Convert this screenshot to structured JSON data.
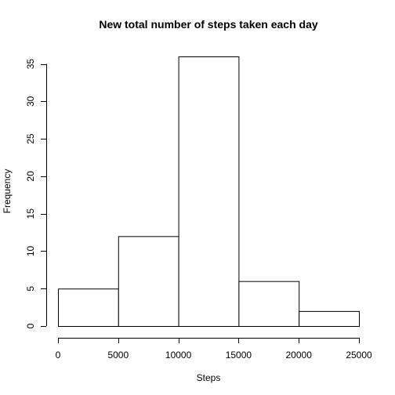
{
  "chart_data": {
    "type": "bar",
    "title": "New total number of steps taken each day",
    "xlabel": "Steps",
    "ylabel": "Frequency",
    "bins": [
      {
        "from": 0,
        "to": 5000,
        "count": 5
      },
      {
        "from": 5000,
        "to": 10000,
        "count": 12
      },
      {
        "from": 10000,
        "to": 15000,
        "count": 36
      },
      {
        "from": 15000,
        "to": 20000,
        "count": 6
      },
      {
        "from": 20000,
        "to": 25000,
        "count": 2
      }
    ],
    "xlim": [
      0,
      25000
    ],
    "ylim": [
      0,
      36
    ],
    "x_ticks": [
      0,
      5000,
      10000,
      15000,
      20000,
      25000
    ],
    "y_ticks": [
      0,
      5,
      10,
      15,
      20,
      25,
      30,
      35
    ],
    "grid": false,
    "legend": "none"
  }
}
